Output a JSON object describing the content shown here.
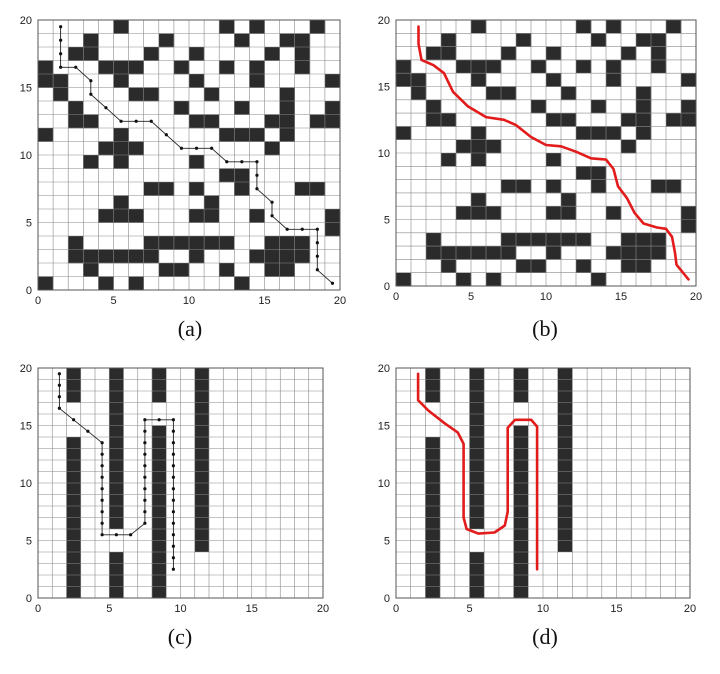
{
  "panel_labels": [
    "(a)",
    "(b)",
    "(c)",
    "(d)"
  ],
  "chart_data": [
    {
      "type": "scatter",
      "subplot_label": "(a)",
      "grid_size": 20,
      "xlim": [
        0,
        20
      ],
      "ylim": [
        0,
        20
      ],
      "xticks": [
        "0",
        "5",
        "10",
        "15",
        "20"
      ],
      "yticks": [
        "0",
        "5",
        "10",
        "15",
        "20"
      ],
      "grid": true,
      "obstacles": [
        [
          5,
          19
        ],
        [
          12,
          19
        ],
        [
          14,
          19
        ],
        [
          18,
          19
        ],
        [
          3,
          18
        ],
        [
          8,
          18
        ],
        [
          13,
          18
        ],
        [
          16,
          18
        ],
        [
          17,
          18
        ],
        [
          2,
          17
        ],
        [
          3,
          17
        ],
        [
          7,
          17
        ],
        [
          10,
          17
        ],
        [
          15,
          17
        ],
        [
          17,
          17
        ],
        [
          0,
          16
        ],
        [
          4,
          16
        ],
        [
          5,
          16
        ],
        [
          6,
          16
        ],
        [
          9,
          16
        ],
        [
          12,
          16
        ],
        [
          14,
          16
        ],
        [
          17,
          16
        ],
        [
          0,
          15
        ],
        [
          1,
          15
        ],
        [
          5,
          15
        ],
        [
          10,
          15
        ],
        [
          14,
          15
        ],
        [
          19,
          15
        ],
        [
          1,
          14
        ],
        [
          6,
          14
        ],
        [
          7,
          14
        ],
        [
          11,
          14
        ],
        [
          16,
          14
        ],
        [
          2,
          13
        ],
        [
          9,
          13
        ],
        [
          13,
          13
        ],
        [
          16,
          13
        ],
        [
          19,
          13
        ],
        [
          2,
          12
        ],
        [
          3,
          12
        ],
        [
          10,
          12
        ],
        [
          11,
          12
        ],
        [
          15,
          12
        ],
        [
          16,
          12
        ],
        [
          18,
          12
        ],
        [
          19,
          12
        ],
        [
          0,
          11
        ],
        [
          5,
          11
        ],
        [
          12,
          11
        ],
        [
          13,
          11
        ],
        [
          14,
          11
        ],
        [
          16,
          11
        ],
        [
          4,
          10
        ],
        [
          5,
          10
        ],
        [
          6,
          10
        ],
        [
          15,
          10
        ],
        [
          3,
          9
        ],
        [
          5,
          9
        ],
        [
          10,
          9
        ],
        [
          12,
          8
        ],
        [
          13,
          8
        ],
        [
          7,
          7
        ],
        [
          8,
          7
        ],
        [
          10,
          7
        ],
        [
          13,
          7
        ],
        [
          17,
          7
        ],
        [
          18,
          7
        ],
        [
          5,
          6
        ],
        [
          11,
          6
        ],
        [
          4,
          5
        ],
        [
          5,
          5
        ],
        [
          6,
          5
        ],
        [
          10,
          5
        ],
        [
          11,
          5
        ],
        [
          14,
          5
        ],
        [
          19,
          5
        ],
        [
          19,
          4
        ],
        [
          2,
          3
        ],
        [
          7,
          3
        ],
        [
          8,
          3
        ],
        [
          9,
          3
        ],
        [
          10,
          3
        ],
        [
          11,
          3
        ],
        [
          12,
          3
        ],
        [
          15,
          3
        ],
        [
          16,
          3
        ],
        [
          17,
          3
        ],
        [
          2,
          2
        ],
        [
          3,
          2
        ],
        [
          4,
          2
        ],
        [
          5,
          2
        ],
        [
          6,
          2
        ],
        [
          7,
          2
        ],
        [
          10,
          2
        ],
        [
          14,
          2
        ],
        [
          15,
          2
        ],
        [
          16,
          2
        ],
        [
          17,
          2
        ],
        [
          3,
          1
        ],
        [
          8,
          1
        ],
        [
          9,
          1
        ],
        [
          12,
          1
        ],
        [
          15,
          1
        ],
        [
          16,
          1
        ],
        [
          0,
          0
        ],
        [
          4,
          0
        ],
        [
          6,
          0
        ],
        [
          13,
          0
        ]
      ],
      "path": [
        [
          1.5,
          19.5
        ],
        [
          1.5,
          18.5
        ],
        [
          1.5,
          17.5
        ],
        [
          1.5,
          16.5
        ],
        [
          2.5,
          16.5
        ],
        [
          3.5,
          15.5
        ],
        [
          3.5,
          14.5
        ],
        [
          4.5,
          13.5
        ],
        [
          5.5,
          12.5
        ],
        [
          6.5,
          12.5
        ],
        [
          7.5,
          12.5
        ],
        [
          8.5,
          11.5
        ],
        [
          9.5,
          10.5
        ],
        [
          10.5,
          10.5
        ],
        [
          11.5,
          10.5
        ],
        [
          12.5,
          9.5
        ],
        [
          13.5,
          9.5
        ],
        [
          14.5,
          9.5
        ],
        [
          14.5,
          8.5
        ],
        [
          14.5,
          7.5
        ],
        [
          15.5,
          6.5
        ],
        [
          15.5,
          5.5
        ],
        [
          16.5,
          4.5
        ],
        [
          17.5,
          4.5
        ],
        [
          18.5,
          4.5
        ],
        [
          18.5,
          3.5
        ],
        [
          18.5,
          2.5
        ],
        [
          18.5,
          1.5
        ],
        [
          19.5,
          0.5
        ]
      ],
      "path_style": "dotted-black"
    },
    {
      "type": "line",
      "subplot_label": "(b)",
      "grid_size": 20,
      "xlim": [
        0,
        20
      ],
      "ylim": [
        0,
        20
      ],
      "xticks": [
        "0",
        "5",
        "10",
        "15",
        "20"
      ],
      "yticks": [
        "0",
        "5",
        "10",
        "15",
        "20"
      ],
      "grid": true,
      "obstacles_same_as": "(a)",
      "path": [
        [
          1.5,
          19.5
        ],
        [
          1.5,
          18.2
        ],
        [
          1.7,
          17.0
        ],
        [
          2.5,
          16.6
        ],
        [
          3.2,
          16.0
        ],
        [
          3.8,
          14.6
        ],
        [
          4.8,
          13.5
        ],
        [
          6.0,
          12.7
        ],
        [
          7.2,
          12.5
        ],
        [
          8.0,
          12.1
        ],
        [
          9.0,
          11.2
        ],
        [
          10.0,
          10.6
        ],
        [
          11.0,
          10.5
        ],
        [
          12.0,
          10.1
        ],
        [
          13.0,
          9.6
        ],
        [
          14.0,
          9.5
        ],
        [
          14.5,
          8.8
        ],
        [
          14.8,
          7.5
        ],
        [
          15.4,
          6.6
        ],
        [
          15.9,
          5.5
        ],
        [
          16.5,
          4.7
        ],
        [
          17.4,
          4.4
        ],
        [
          18.0,
          4.3
        ],
        [
          18.4,
          3.7
        ],
        [
          18.6,
          2.5
        ],
        [
          18.7,
          1.6
        ],
        [
          19.5,
          0.5
        ]
      ],
      "path_color": "#e21b1b",
      "path_style": "solid-red"
    },
    {
      "type": "scatter",
      "subplot_label": "(c)",
      "grid_size": 20,
      "xlim": [
        0,
        20
      ],
      "ylim": [
        0,
        20
      ],
      "xticks": [
        "0",
        "5",
        "10",
        "15",
        "20"
      ],
      "yticks": [
        "0",
        "5",
        "10",
        "15",
        "20"
      ],
      "grid": true,
      "walls": [
        {
          "x0": 2,
          "x1": 3,
          "y0": 17,
          "y1": 20
        },
        {
          "x0": 2,
          "x1": 3,
          "y0": 0,
          "y1": 14
        },
        {
          "x0": 5,
          "x1": 6,
          "y0": 6,
          "y1": 20
        },
        {
          "x0": 5,
          "x1": 6,
          "y0": 0,
          "y1": 4
        },
        {
          "x0": 8,
          "x1": 9,
          "y0": 17,
          "y1": 20
        },
        {
          "x0": 8,
          "x1": 9,
          "y0": 0,
          "y1": 15
        },
        {
          "x0": 11,
          "x1": 12,
          "y0": 4,
          "y1": 20
        }
      ],
      "path": [
        [
          1.5,
          19.5
        ],
        [
          1.5,
          18.5
        ],
        [
          1.5,
          17.5
        ],
        [
          1.5,
          16.5
        ],
        [
          2.5,
          15.5
        ],
        [
          3.5,
          14.5
        ],
        [
          4.5,
          13.5
        ],
        [
          4.5,
          12.5
        ],
        [
          4.5,
          11.5
        ],
        [
          4.5,
          10.5
        ],
        [
          4.5,
          9.5
        ],
        [
          4.5,
          8.5
        ],
        [
          4.5,
          7.5
        ],
        [
          4.5,
          6.5
        ],
        [
          4.5,
          5.5
        ],
        [
          5.5,
          5.5
        ],
        [
          6.5,
          5.5
        ],
        [
          7.5,
          6.5
        ],
        [
          7.5,
          7.5
        ],
        [
          7.5,
          8.5
        ],
        [
          7.5,
          9.5
        ],
        [
          7.5,
          10.5
        ],
        [
          7.5,
          11.5
        ],
        [
          7.5,
          12.5
        ],
        [
          7.5,
          13.5
        ],
        [
          7.5,
          14.5
        ],
        [
          7.5,
          15.5
        ],
        [
          8.5,
          15.5
        ],
        [
          9.5,
          15.5
        ],
        [
          9.5,
          14.5
        ],
        [
          9.5,
          13.5
        ],
        [
          9.5,
          12.5
        ],
        [
          9.5,
          11.5
        ],
        [
          9.5,
          10.5
        ],
        [
          9.5,
          9.5
        ],
        [
          9.5,
          8.5
        ],
        [
          9.5,
          7.5
        ],
        [
          9.5,
          6.5
        ],
        [
          9.5,
          5.5
        ],
        [
          9.5,
          4.5
        ],
        [
          9.5,
          3.5
        ],
        [
          9.5,
          2.5
        ]
      ],
      "path_style": "dotted-black"
    },
    {
      "type": "line",
      "subplot_label": "(d)",
      "grid_size": 20,
      "xlim": [
        0,
        20
      ],
      "ylim": [
        0,
        20
      ],
      "xticks": [
        "0",
        "5",
        "10",
        "15",
        "20"
      ],
      "yticks": [
        "0",
        "5",
        "10",
        "15",
        "20"
      ],
      "grid": true,
      "walls_same_as": "(c)",
      "path": [
        [
          1.5,
          19.5
        ],
        [
          1.5,
          17.2
        ],
        [
          2.2,
          16.3
        ],
        [
          3.3,
          15.2
        ],
        [
          4.2,
          14.4
        ],
        [
          4.6,
          13.4
        ],
        [
          4.6,
          7.0
        ],
        [
          4.8,
          6.0
        ],
        [
          5.6,
          5.6
        ],
        [
          6.7,
          5.7
        ],
        [
          7.4,
          6.3
        ],
        [
          7.6,
          7.5
        ],
        [
          7.6,
          14.8
        ],
        [
          8.1,
          15.5
        ],
        [
          9.2,
          15.5
        ],
        [
          9.6,
          14.9
        ],
        [
          9.6,
          2.5
        ]
      ],
      "path_color": "#e21b1b",
      "path_style": "solid-red"
    }
  ]
}
